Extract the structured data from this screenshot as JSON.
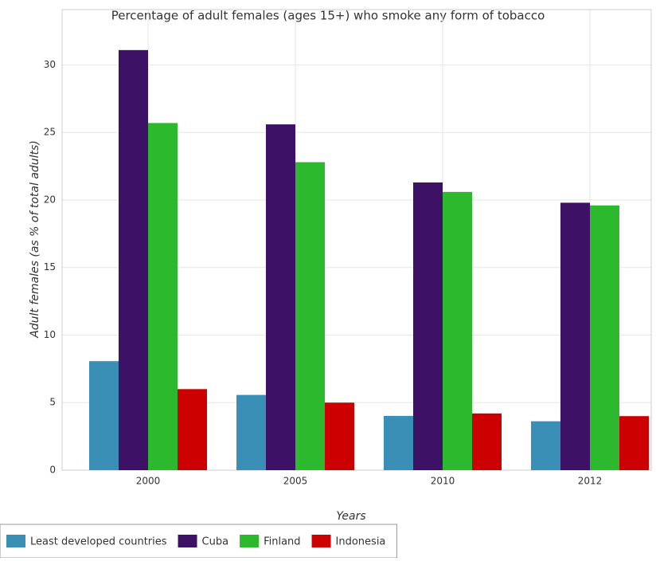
{
  "chart_data": {
    "type": "bar",
    "title": "Percentage of adult females (ages 15+) who smoke any form of tobacco",
    "x_label": "Years",
    "y_label": "Adult females (as % of total adults)",
    "categories": [
      "2000",
      "2005",
      "2010",
      "2012"
    ],
    "series": [
      {
        "name": "Least developed countries",
        "color": "#3a8fb7",
        "values": [
          8.07,
          5.57,
          4.02,
          3.62
        ]
      },
      {
        "name": "Cuba",
        "color": "#3d1266",
        "values": [
          31.1,
          25.6,
          21.3,
          19.8
        ]
      },
      {
        "name": "Finland",
        "color": "#2db92d",
        "values": [
          25.7,
          22.8,
          20.6,
          19.6
        ]
      },
      {
        "name": "Indonesia",
        "color": "#cc0000",
        "values": [
          6.0,
          5.0,
          4.2,
          4.0
        ]
      }
    ],
    "ylim": [
      0,
      34.1
    ],
    "yticks": [
      0,
      5,
      10,
      15,
      20,
      25,
      30
    ],
    "grid": true,
    "legend": "lower left"
  }
}
